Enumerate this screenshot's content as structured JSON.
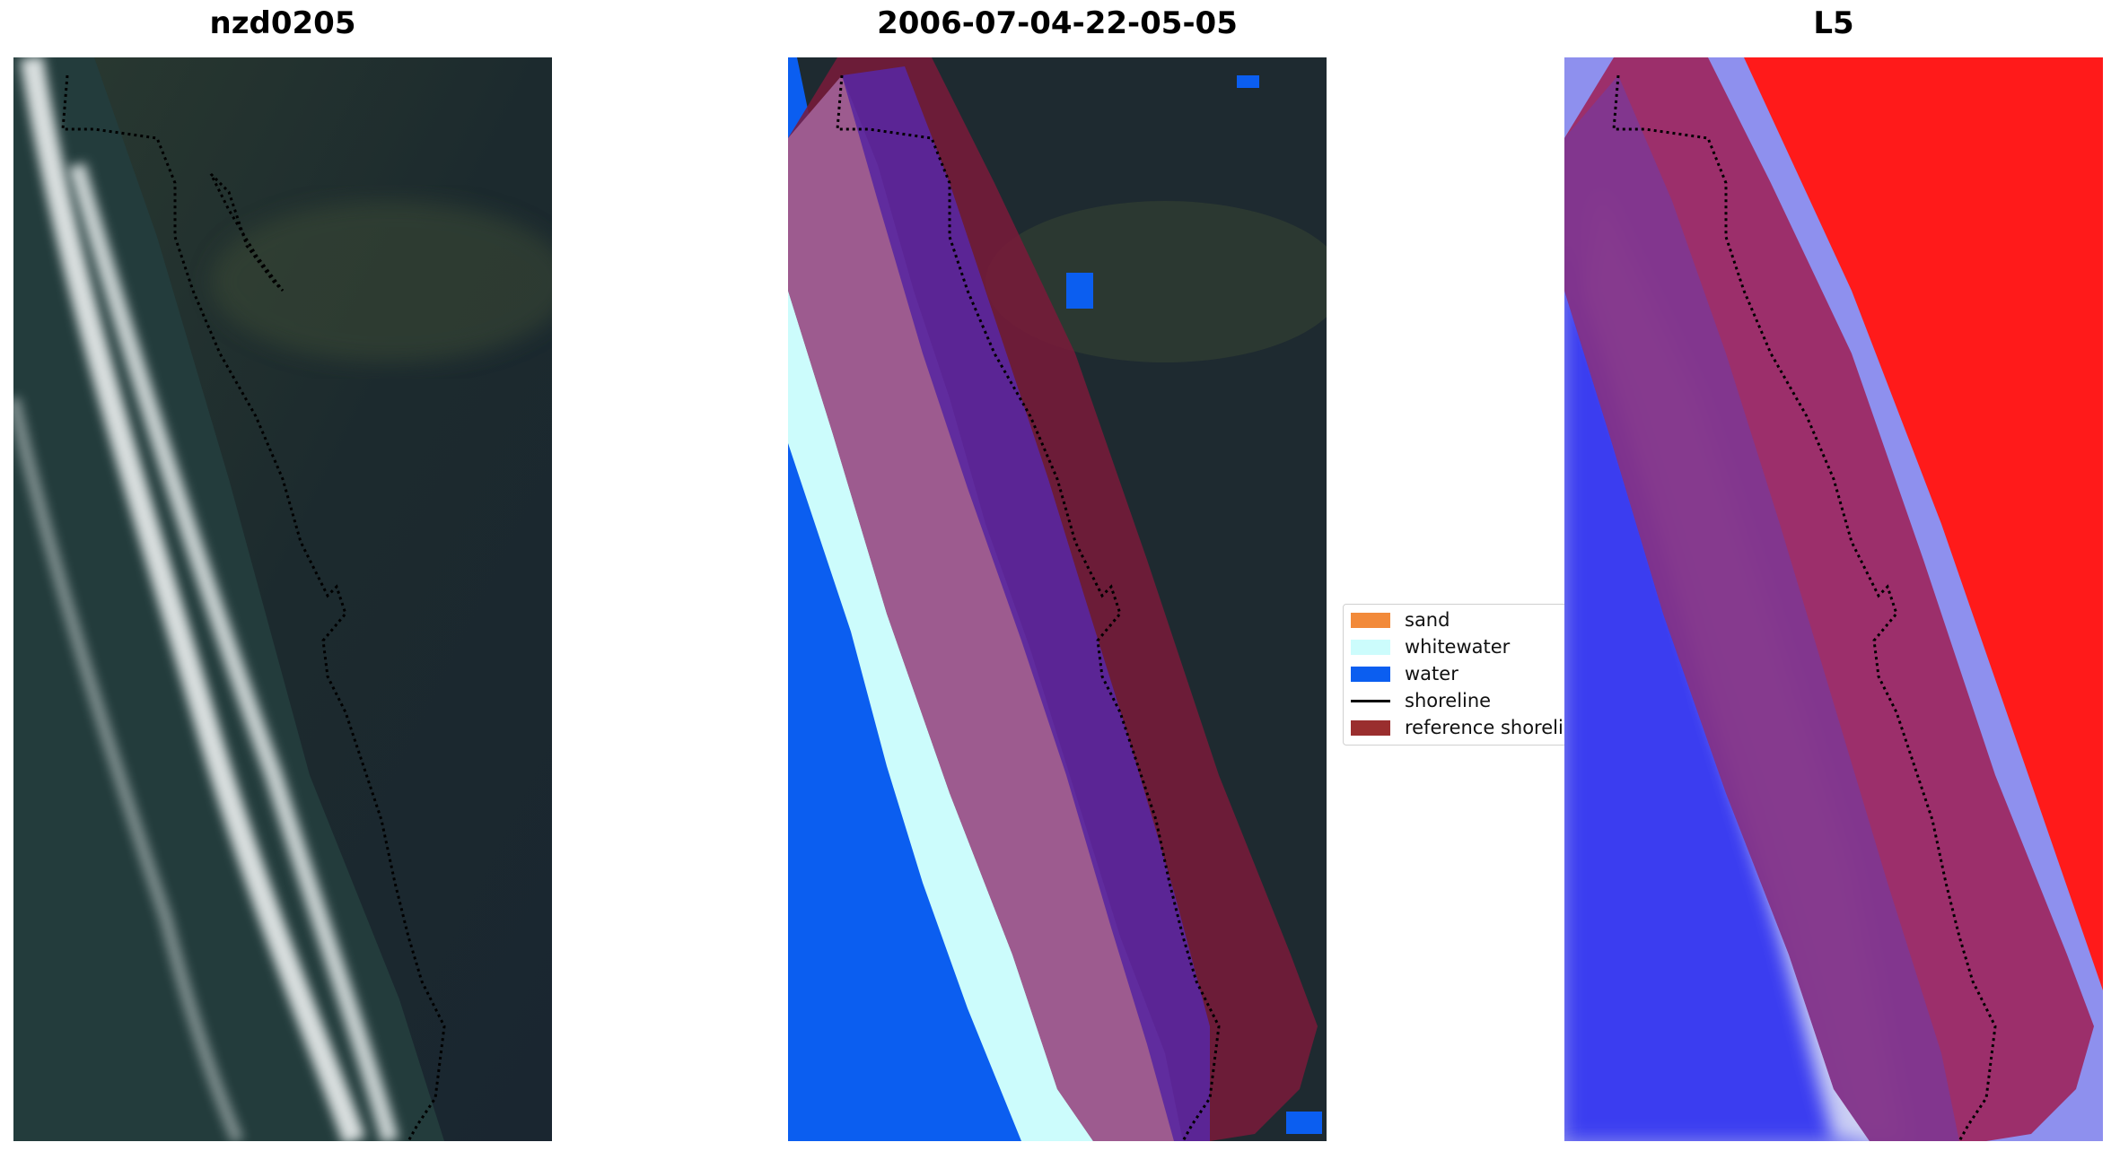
{
  "panels": [
    {
      "title": "nzd0205"
    },
    {
      "title": "2006-07-04-22-05-05"
    },
    {
      "title": "L5"
    }
  ],
  "legend": {
    "items": [
      {
        "label": "sand",
        "color": "#f28a3a",
        "kind": "patch"
      },
      {
        "label": "whitewater",
        "color": "#ccfcfc",
        "kind": "patch"
      },
      {
        "label": "water",
        "color": "#0b5ef0",
        "kind": "patch"
      },
      {
        "label": "shoreline",
        "color": "#000000",
        "kind": "line"
      },
      {
        "label": "reference shoreline",
        "color": "#9a2e2e",
        "kind": "patch"
      }
    ]
  },
  "colors": {
    "land_dark": "#1e2a30",
    "sea": "#233a3a",
    "surf_white": "#d6dcdc",
    "buffer_overlay": "#7a1a3a",
    "classified_sand_overlay": "#9d5b8f",
    "classified_purple": "#5a27a0",
    "index_red": "#ff1a1a",
    "index_blue": "#3a3cf0"
  }
}
